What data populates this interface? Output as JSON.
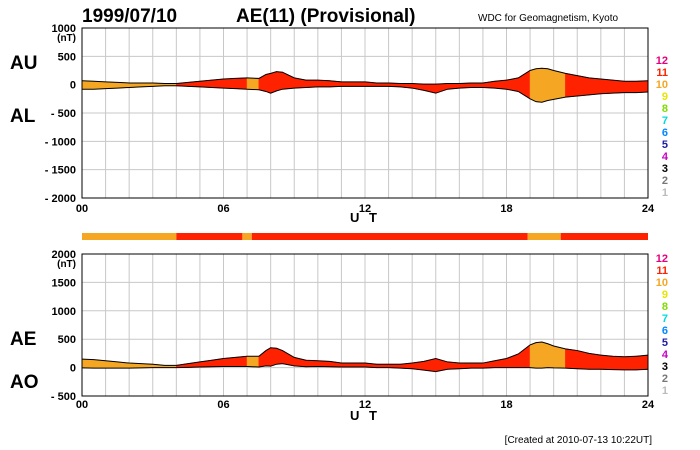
{
  "header": {
    "date": "1999/07/10",
    "title": "AE(11) (Provisional)",
    "source": "WDC for Geomagnetism, Kyoto"
  },
  "footer": "[Created at 2010-07-13 10:22UT]",
  "legend": {
    "labels": [
      "12",
      "11",
      "10",
      "9",
      "8",
      "7",
      "6",
      "5",
      "4",
      "3",
      "2",
      "1"
    ],
    "colors": [
      "#e6007e",
      "#ff2200",
      "#f5a623",
      "#e6e600",
      "#7fdc00",
      "#00dcdc",
      "#0088ff",
      "#1e1ea0",
      "#c800c8",
      "#000000",
      "#777777",
      "#bbbbbb"
    ]
  },
  "chart_data": [
    {
      "type": "area",
      "name": "AU/AL",
      "side_labels": [
        "AU",
        "AL"
      ],
      "unit": "(nT)",
      "ylim": [
        -2000,
        1000
      ],
      "yticks": [
        "1000",
        "500",
        "0",
        "- 500",
        "- 1000",
        "- 1500",
        "- 2000"
      ],
      "xlim": [
        0,
        24
      ],
      "xticks": [
        "00",
        "06",
        "12",
        "18",
        "24"
      ],
      "xlabel": "U T",
      "x": [
        0,
        0.5,
        1,
        1.5,
        2,
        2.5,
        3,
        3.5,
        4,
        4.5,
        5,
        5.5,
        6,
        6.5,
        7,
        7.5,
        7.8,
        8,
        8.25,
        8.5,
        9,
        9.5,
        10,
        10.5,
        11,
        11.5,
        12,
        12.5,
        13,
        13.5,
        14,
        14.5,
        15,
        15.5,
        16,
        16.5,
        17,
        17.5,
        18,
        18.5,
        19,
        19.25,
        19.5,
        19.75,
        20,
        20.5,
        21,
        21.5,
        22,
        22.5,
        23,
        23.5,
        24
      ],
      "upper": [
        70,
        60,
        50,
        40,
        30,
        30,
        30,
        20,
        20,
        40,
        60,
        80,
        100,
        110,
        120,
        110,
        180,
        200,
        230,
        220,
        120,
        80,
        80,
        70,
        50,
        50,
        50,
        30,
        30,
        20,
        20,
        10,
        10,
        20,
        20,
        30,
        30,
        60,
        80,
        120,
        250,
        280,
        290,
        280,
        250,
        200,
        160,
        120,
        100,
        80,
        60,
        60,
        70
      ],
      "lower": [
        -80,
        -80,
        -70,
        -60,
        -50,
        -40,
        -30,
        -20,
        -20,
        -30,
        -40,
        -50,
        -60,
        -70,
        -80,
        -90,
        -120,
        -150,
        -110,
        -80,
        -60,
        -50,
        -40,
        -40,
        -30,
        -30,
        -30,
        -30,
        -30,
        -40,
        -60,
        -100,
        -150,
        -80,
        -60,
        -50,
        -50,
        -60,
        -80,
        -120,
        -250,
        -300,
        -310,
        -280,
        -260,
        -220,
        -200,
        -180,
        -160,
        -150,
        -140,
        -140,
        -130
      ],
      "activity": [
        10,
        10,
        10,
        10,
        10,
        10,
        10,
        10,
        11,
        11,
        11,
        11,
        11,
        11,
        10,
        11,
        11,
        11,
        11,
        11,
        11,
        11,
        11,
        11,
        11,
        11,
        11,
        11,
        11,
        11,
        11,
        11,
        11,
        11,
        11,
        11,
        11,
        11,
        11,
        11,
        10,
        10,
        10,
        10,
        10,
        11,
        11,
        11,
        11,
        11,
        11,
        11,
        11
      ]
    },
    {
      "type": "area",
      "name": "AE/AO",
      "side_labels": [
        "AE",
        "AO"
      ],
      "unit": "(nT)",
      "ylim": [
        -500,
        2000
      ],
      "yticks": [
        "2000",
        "1500",
        "1000",
        "500",
        "0",
        "- 500"
      ],
      "xlim": [
        0,
        24
      ],
      "xticks": [
        "00",
        "06",
        "12",
        "18",
        "24"
      ],
      "xlabel": "U T",
      "x": [
        0,
        0.5,
        1,
        1.5,
        2,
        2.5,
        3,
        3.5,
        4,
        4.5,
        5,
        5.5,
        6,
        6.5,
        7,
        7.5,
        7.8,
        8,
        8.25,
        8.5,
        9,
        9.5,
        10,
        10.5,
        11,
        11.5,
        12,
        12.5,
        13,
        13.5,
        14,
        14.5,
        15,
        15.5,
        16,
        16.5,
        17,
        17.5,
        18,
        18.5,
        19,
        19.25,
        19.5,
        19.75,
        20,
        20.5,
        21,
        21.5,
        22,
        22.5,
        23,
        23.5,
        24
      ],
      "upper": [
        150,
        140,
        120,
        100,
        80,
        70,
        60,
        40,
        40,
        70,
        100,
        130,
        160,
        180,
        200,
        200,
        300,
        350,
        340,
        300,
        180,
        130,
        120,
        110,
        80,
        80,
        80,
        60,
        60,
        60,
        80,
        110,
        160,
        100,
        80,
        80,
        80,
        120,
        160,
        240,
        400,
        440,
        450,
        420,
        380,
        330,
        300,
        250,
        220,
        200,
        190,
        200,
        220
      ],
      "lower": [
        -5,
        -10,
        -10,
        -10,
        -10,
        -5,
        0,
        0,
        0,
        5,
        10,
        15,
        20,
        20,
        20,
        10,
        30,
        25,
        60,
        70,
        30,
        15,
        20,
        15,
        10,
        10,
        10,
        0,
        0,
        -10,
        -20,
        -45,
        -70,
        -30,
        -20,
        -10,
        -10,
        0,
        0,
        0,
        0,
        -10,
        -10,
        0,
        -5,
        -10,
        -20,
        -30,
        -30,
        -35,
        -40,
        -40,
        -30
      ],
      "activity": [
        10,
        10,
        10,
        10,
        10,
        10,
        10,
        10,
        11,
        11,
        11,
        11,
        11,
        11,
        10,
        11,
        11,
        11,
        11,
        11,
        11,
        11,
        11,
        11,
        11,
        11,
        11,
        11,
        11,
        11,
        11,
        11,
        11,
        11,
        11,
        11,
        11,
        11,
        11,
        11,
        10,
        10,
        10,
        10,
        10,
        11,
        11,
        11,
        11,
        11,
        11,
        11,
        11
      ]
    }
  ],
  "activity_bar": [
    {
      "from": 0,
      "to": 4.0,
      "level": 10
    },
    {
      "from": 4.0,
      "to": 6.8,
      "level": 11
    },
    {
      "from": 6.8,
      "to": 7.2,
      "level": 10
    },
    {
      "from": 7.2,
      "to": 18.9,
      "level": 11
    },
    {
      "from": 18.9,
      "to": 20.3,
      "level": 10
    },
    {
      "from": 20.3,
      "to": 24,
      "level": 11
    }
  ]
}
